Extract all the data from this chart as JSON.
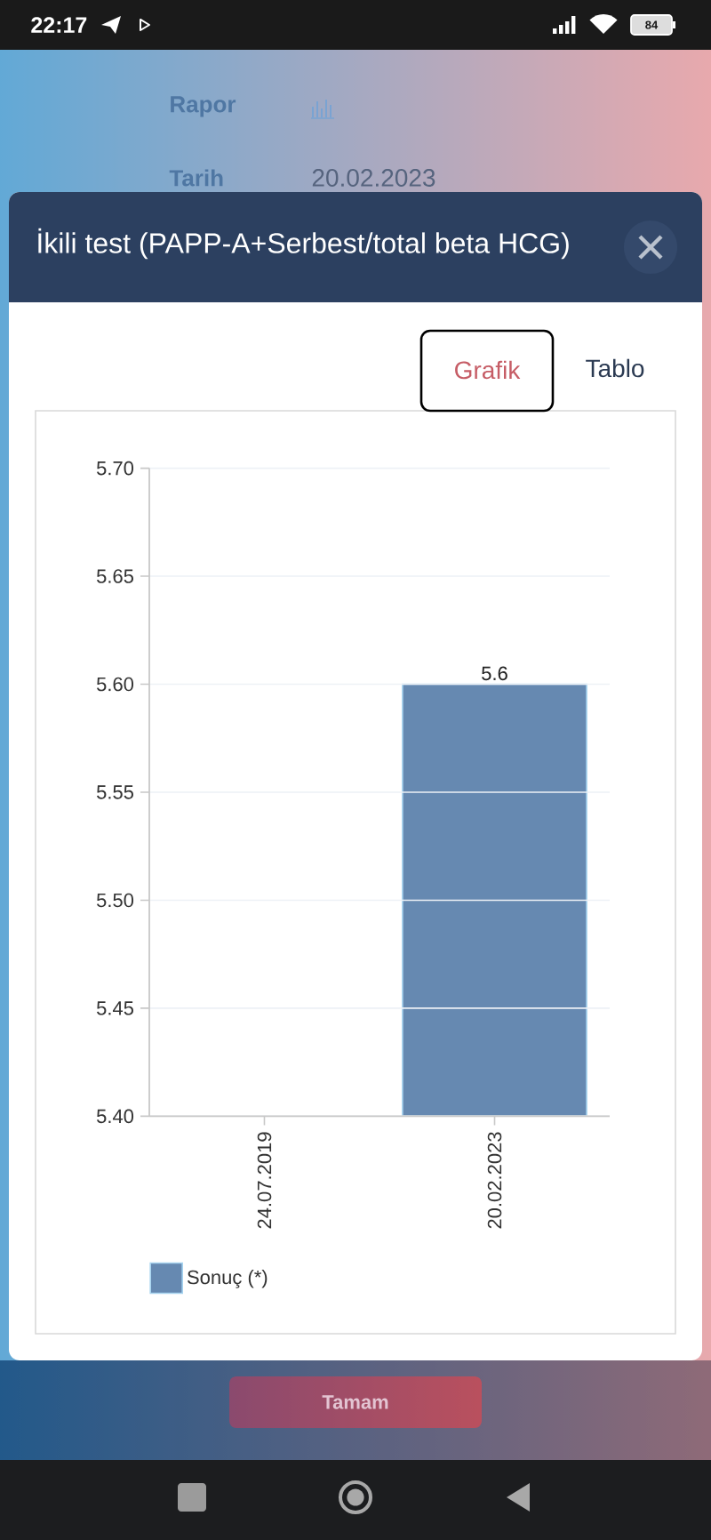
{
  "chart_data": {
    "type": "bar",
    "title": "İkili test (PAPP-A+Serbest/total beta HCG)",
    "categories": [
      "24.07.2019",
      "20.02.2023"
    ],
    "series": [
      {
        "name": "Sonuç (*)",
        "color": "#6689b1",
        "values": [
          null,
          5.6
        ]
      }
    ],
    "ylim": [
      5.4,
      5.7
    ],
    "yticks": [
      {
        "value": 5.4,
        "label": "5.40"
      },
      5.45,
      {
        "value": 5.5,
        "label": "5.50"
      },
      5.55,
      {
        "value": 5.6,
        "label": "5.60"
      },
      5.65,
      {
        "value": 5.7,
        "label": "5.70"
      }
    ],
    "grid": "y",
    "legend": "bottom",
    "data_labels": true,
    "annotations": [
      "22:17",
      "84",
      "Rapor",
      "Tarih",
      "20.02.2023",
      "Grafik",
      "Tablo",
      "Tamam"
    ]
  }
}
